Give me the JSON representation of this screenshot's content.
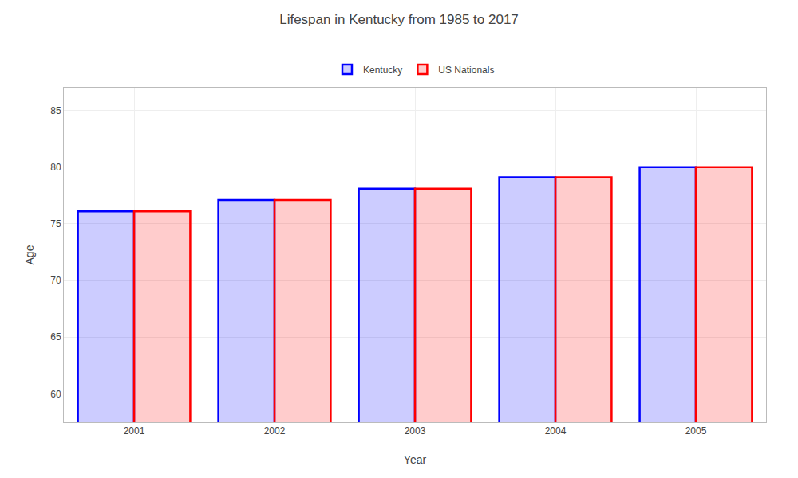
{
  "chart_data": {
    "type": "bar",
    "title": "Lifespan in Kentucky from 1985 to 2017",
    "xlabel": "Year",
    "ylabel": "Age",
    "categories": [
      "2001",
      "2002",
      "2003",
      "2004",
      "2005"
    ],
    "series": [
      {
        "name": "Kentucky",
        "color": "#0000ff",
        "values": [
          76.1,
          77.1,
          78.1,
          79.1,
          80.0
        ]
      },
      {
        "name": "US Nationals",
        "color": "#ff0000",
        "values": [
          76.1,
          77.1,
          78.1,
          79.1,
          80.0
        ]
      }
    ],
    "ylim": [
      57.5,
      87
    ],
    "yticks": [
      60,
      65,
      70,
      75,
      80,
      85
    ],
    "grid": true,
    "legend": "top"
  }
}
